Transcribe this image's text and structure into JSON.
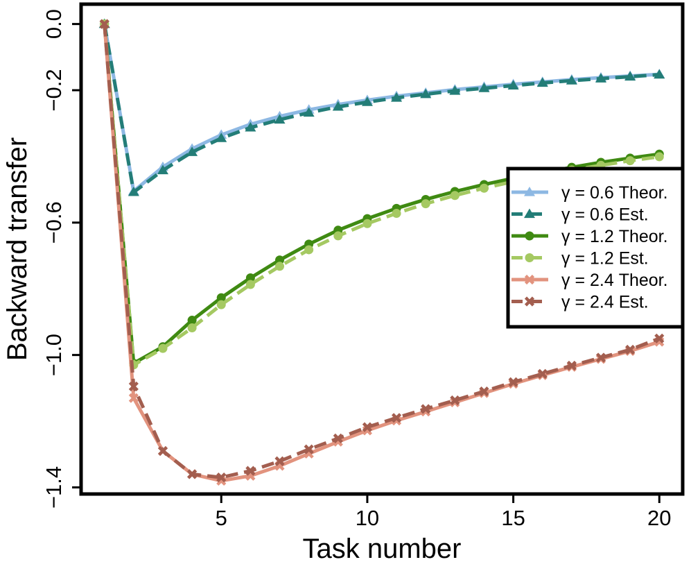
{
  "chart_data": {
    "type": "line",
    "title": "",
    "xlabel": "Task number",
    "ylabel": "Backward transfer",
    "xlim": [
      0.2,
      20.8
    ],
    "ylim": [
      -1.42,
      0.06
    ],
    "xticks": [
      5,
      10,
      15,
      20
    ],
    "xtick_labels": [
      "5",
      "10",
      "15",
      "20"
    ],
    "yticks": [
      0.0,
      -0.2,
      -0.6,
      -1.0,
      -1.4
    ],
    "ytick_labels": [
      "0.0",
      "−0.2",
      "−0.6",
      "−1.0",
      "−1.4"
    ],
    "grid": false,
    "legend_position": "right",
    "x": [
      1,
      2,
      3,
      4,
      5,
      6,
      7,
      8,
      9,
      10,
      11,
      12,
      13,
      14,
      15,
      16,
      17,
      18,
      19,
      20
    ],
    "series": [
      {
        "name": "γ = 0.6 Theor.",
        "color": "#8db8e3",
        "marker": "triangle",
        "dash": "solid",
        "values": [
          0.0,
          -0.505,
          -0.432,
          -0.377,
          -0.335,
          -0.303,
          -0.279,
          -0.259,
          -0.243,
          -0.23,
          -0.218,
          -0.208,
          -0.198,
          -0.19,
          -0.182,
          -0.175,
          -0.168,
          -0.162,
          -0.157,
          -0.152
        ]
      },
      {
        "name": "γ = 0.6 Est.",
        "color": "#237d77",
        "marker": "triangle",
        "dash": "dashed",
        "values": [
          0.0,
          -0.508,
          -0.442,
          -0.387,
          -0.345,
          -0.313,
          -0.289,
          -0.268,
          -0.25,
          -0.236,
          -0.223,
          -0.212,
          -0.202,
          -0.194,
          -0.186,
          -0.178,
          -0.171,
          -0.165,
          -0.159,
          -0.153
        ]
      },
      {
        "name": "γ = 1.2 Theor.",
        "color": "#3f8a12",
        "marker": "circle",
        "dash": "solid",
        "values": [
          0.0,
          -1.025,
          -0.975,
          -0.895,
          -0.827,
          -0.767,
          -0.713,
          -0.665,
          -0.623,
          -0.588,
          -0.557,
          -0.53,
          -0.506,
          -0.485,
          -0.466,
          -0.449,
          -0.433,
          -0.418,
          -0.405,
          -0.393
        ]
      },
      {
        "name": "γ = 1.2 Est.",
        "color": "#a5c962",
        "marker": "circle",
        "dash": "dashed",
        "values": [
          0.0,
          -1.03,
          -0.98,
          -0.918,
          -0.848,
          -0.787,
          -0.732,
          -0.682,
          -0.64,
          -0.603,
          -0.572,
          -0.543,
          -0.518,
          -0.496,
          -0.476,
          -0.458,
          -0.441,
          -0.427,
          -0.413,
          -0.401
        ]
      },
      {
        "name": "γ = 2.4 Theor.",
        "color": "#e2937e",
        "marker": "cross",
        "dash": "solid",
        "values": [
          0.0,
          -1.13,
          -1.29,
          -1.36,
          -1.38,
          -1.365,
          -1.335,
          -1.298,
          -1.262,
          -1.228,
          -1.198,
          -1.171,
          -1.143,
          -1.115,
          -1.087,
          -1.061,
          -1.036,
          -1.012,
          -0.988,
          -0.96
        ]
      },
      {
        "name": "γ = 2.4 Est.",
        "color": "#a35e4f",
        "marker": "cross",
        "dash": "dashed",
        "values": [
          0.0,
          -1.095,
          -1.29,
          -1.36,
          -1.37,
          -1.35,
          -1.321,
          -1.285,
          -1.252,
          -1.218,
          -1.19,
          -1.163,
          -1.137,
          -1.11,
          -1.082,
          -1.057,
          -1.032,
          -1.008,
          -0.984,
          -0.95
        ]
      }
    ]
  }
}
